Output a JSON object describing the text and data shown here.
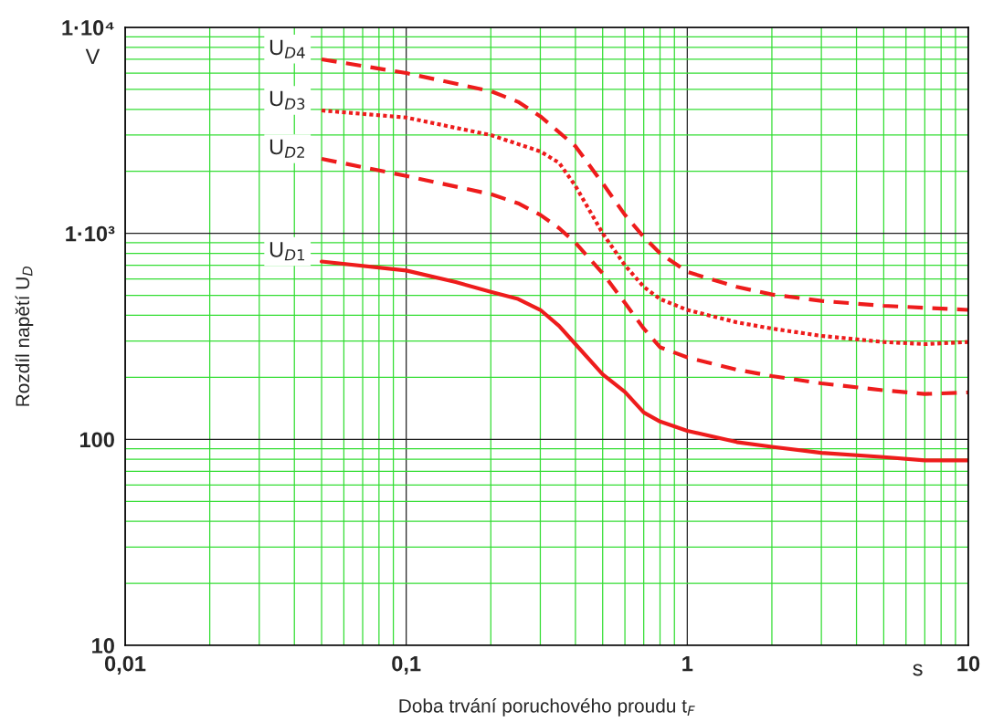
{
  "chart_data": {
    "type": "line",
    "xlabel": "Doba trvání poruchového proudu t$_{F}$",
    "ylabel": "Rozdíl napětí U$_{D}$",
    "annotations": [
      "V",
      "s"
    ],
    "log": "xy",
    "xlim": [
      0.01,
      10
    ],
    "ylim": [
      10,
      10000
    ],
    "xticks": [
      {
        "value": 0.01,
        "label": "0,01"
      },
      {
        "value": 0.02,
        "label": null
      },
      {
        "value": 0.03,
        "label": null
      },
      {
        "value": 0.04,
        "label": null
      },
      {
        "value": 0.05,
        "label": null
      },
      {
        "value": 0.06,
        "label": null
      },
      {
        "value": 0.07,
        "label": null
      },
      {
        "value": 0.08,
        "label": null
      },
      {
        "value": 0.09,
        "label": null
      },
      {
        "value": 0.1,
        "label": "0,1"
      },
      {
        "value": 0.2,
        "label": null
      },
      {
        "value": 0.3,
        "label": null
      },
      {
        "value": 0.4,
        "label": null
      },
      {
        "value": 0.5,
        "label": null
      },
      {
        "value": 0.6,
        "label": null
      },
      {
        "value": 0.7,
        "label": null
      },
      {
        "value": 0.8,
        "label": null
      },
      {
        "value": 0.9,
        "label": null
      },
      1,
      {
        "value": 2,
        "label": null
      },
      {
        "value": 3,
        "label": null
      },
      {
        "value": 4,
        "label": null
      },
      {
        "value": 5,
        "label": null
      },
      {
        "value": 6,
        "label": null
      },
      {
        "value": 7,
        "label": null
      },
      {
        "value": 8,
        "label": null
      },
      {
        "value": 9,
        "label": null
      },
      10
    ],
    "yticks": [
      10,
      {
        "value": 20,
        "label": null
      },
      {
        "value": 30,
        "label": null
      },
      {
        "value": 40,
        "label": null
      },
      {
        "value": 50,
        "label": null
      },
      {
        "value": 60,
        "label": null
      },
      {
        "value": 70,
        "label": null
      },
      {
        "value": 80,
        "label": null
      },
      {
        "value": 90,
        "label": null
      },
      100,
      {
        "value": 200,
        "label": null
      },
      {
        "value": 300,
        "label": null
      },
      {
        "value": 400,
        "label": null
      },
      {
        "value": 500,
        "label": null
      },
      {
        "value": 600,
        "label": null
      },
      {
        "value": 700,
        "label": null
      },
      {
        "value": 800,
        "label": null
      },
      {
        "value": 900,
        "label": null
      },
      {
        "value": 1000,
        "label": "1·10³"
      },
      {
        "value": 2000,
        "label": null
      },
      {
        "value": 3000,
        "label": null
      },
      {
        "value": 4000,
        "label": null
      },
      {
        "value": 5000,
        "label": null
      },
      {
        "value": 6000,
        "label": null
      },
      {
        "value": 7000,
        "label": null
      },
      {
        "value": 8000,
        "label": null
      },
      {
        "value": 9000,
        "label": null
      },
      {
        "value": 10000,
        "label": "1·10⁴"
      }
    ],
    "grid": true,
    "legend": false,
    "marker": "none",
    "series": [
      {
        "name": "U$_{D1}$",
        "color": "#ee1c1c",
        "line_style": "solid",
        "x": [
          0.05,
          0.1,
          0.15,
          0.2,
          0.25,
          0.3,
          0.35,
          0.4,
          0.5,
          0.6,
          0.7,
          0.8,
          1,
          1.5,
          2,
          3,
          5,
          7,
          10
        ],
        "values": [
          730,
          660,
          580,
          520,
          480,
          425,
          355,
          290,
          207,
          170,
          135,
          122,
          110,
          97,
          92,
          86,
          82,
          79,
          79
        ]
      },
      {
        "name": "U$_{D2}$",
        "color": "#ee1c1c",
        "line_style": "dashed",
        "x": [
          0.05,
          0.1,
          0.2,
          0.25,
          0.3,
          0.35,
          0.4,
          0.5,
          0.6,
          0.7,
          0.8,
          1,
          1.5,
          2,
          3,
          5,
          7,
          10
        ],
        "values": [
          2300,
          1900,
          1550,
          1400,
          1230,
          1060,
          900,
          640,
          460,
          345,
          280,
          250,
          218,
          203,
          187,
          173,
          166,
          169
        ]
      },
      {
        "name": "U$_{D3}$",
        "color": "#ee1c1c",
        "line_style": "dotted",
        "x": [
          0.05,
          0.1,
          0.2,
          0.3,
          0.35,
          0.4,
          0.5,
          0.6,
          0.7,
          0.8,
          1,
          1.5,
          2,
          3,
          5,
          7,
          10
        ],
        "values": [
          3950,
          3650,
          3000,
          2500,
          2200,
          1700,
          1000,
          700,
          550,
          480,
          425,
          370,
          345,
          318,
          297,
          290,
          297
        ]
      },
      {
        "name": "U$_{D4}$",
        "color": "#ee1c1c",
        "line_style": "dashed",
        "x": [
          0.05,
          0.1,
          0.2,
          0.25,
          0.3,
          0.4,
          0.5,
          0.6,
          0.7,
          0.8,
          1,
          1.5,
          2,
          3,
          5,
          10
        ],
        "values": [
          7000,
          6000,
          4900,
          4350,
          3700,
          2650,
          1750,
          1230,
          960,
          800,
          650,
          550,
          505,
          470,
          445,
          425
        ]
      }
    ]
  }
}
